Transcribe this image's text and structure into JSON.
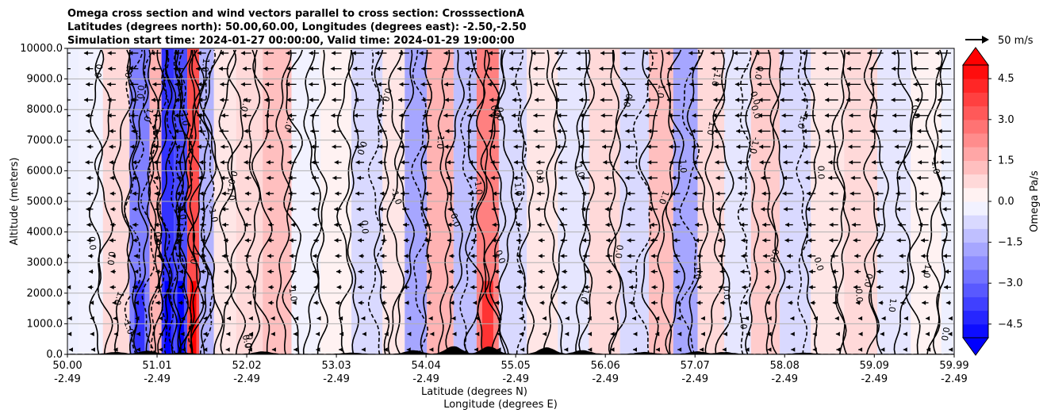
{
  "title": {
    "line1": "Omega cross section and wind vectors parallel to cross section: CrosssectionA",
    "line2": "Latitudes (degrees north): 50.00,60.00, Longitudes (degrees east): -2.50,-2.50",
    "line3": "Simulation start time: 2024-01-27 00:00:00, Valid time: 2024-01-29 19:00:00"
  },
  "chart_data": {
    "type": "heatmap",
    "description_type": "omega cross section with contours and wind vectors",
    "ylabel": "Altitude (meters)",
    "xlabel_lat": "Latitude (degrees N)",
    "xlabel_lon": "Longitude (degrees E)",
    "ylim": [
      0,
      10000
    ],
    "xlim": [
      50.0,
      59.99
    ],
    "y_ticks": [
      "0.0",
      "1000.0",
      "2000.0",
      "3000.0",
      "4000.0",
      "5000.0",
      "6000.0",
      "7000.0",
      "8000.0",
      "9000.0",
      "10000.0"
    ],
    "y_tick_values": [
      0,
      1000,
      2000,
      3000,
      4000,
      5000,
      6000,
      7000,
      8000,
      9000,
      10000
    ],
    "x_ticks_lat": [
      "50.00",
      "51.01",
      "52.02",
      "53.03",
      "54.04",
      "55.05",
      "56.06",
      "57.07",
      "58.08",
      "59.09",
      "59.99"
    ],
    "x_ticks_lon": [
      "-2.49",
      "-2.49",
      "-2.49",
      "-2.49",
      "-2.49",
      "-2.49",
      "-2.49",
      "-2.49",
      "-2.49",
      "-2.49",
      "-2.49"
    ],
    "grid": true,
    "colorbar": {
      "label": "Omega Pa/s",
      "range": [
        -5.0,
        5.0
      ],
      "ticks": [
        "4.5",
        "3.0",
        "1.5",
        "0.0",
        "−1.5",
        "−3.0",
        "−4.5"
      ],
      "tick_values": [
        4.5,
        3.0,
        1.5,
        0.0,
        -1.5,
        -3.0,
        -4.5
      ],
      "colormap": "bwr",
      "extend": "both"
    },
    "contour_levels": [
      -1.0,
      0.0,
      1.0
    ],
    "contour_labels": [
      "0.0",
      "1.0",
      "-1.0",
      "0.0",
      "1.0",
      "0.0",
      "1.0",
      "0.0",
      "-1.0",
      "0.0",
      "1.0",
      "0.0",
      "0.0",
      "-1.0",
      "1.0",
      "0.0"
    ],
    "omega_bands": [
      {
        "lat": 50.25,
        "omega": -0.3
      },
      {
        "lat": 50.55,
        "omega": 0.8
      },
      {
        "lat": 50.85,
        "omega": -2.5
      },
      {
        "lat": 51.0,
        "omega": 1.5
      },
      {
        "lat": 51.12,
        "omega": -4.0
      },
      {
        "lat": 51.28,
        "omega": -3.5
      },
      {
        "lat": 51.42,
        "omega": 3.5
      },
      {
        "lat": 51.55,
        "omega": -1.5
      },
      {
        "lat": 51.75,
        "omega": 0.5
      },
      {
        "lat": 52.05,
        "omega": 0.8
      },
      {
        "lat": 52.35,
        "omega": 1.2
      },
      {
        "lat": 52.7,
        "omega": -0.3
      },
      {
        "lat": 53.0,
        "omega": 0.3
      },
      {
        "lat": 53.4,
        "omega": -0.8
      },
      {
        "lat": 53.7,
        "omega": 0.6
      },
      {
        "lat": 53.9,
        "omega": -1.8
      },
      {
        "lat": 54.2,
        "omega": 1.5
      },
      {
        "lat": 54.5,
        "omega": -1.2
      },
      {
        "lat": 54.72,
        "omega": 2.5
      },
      {
        "lat": 55.0,
        "omega": -0.8
      },
      {
        "lat": 55.35,
        "omega": 0.5
      },
      {
        "lat": 55.7,
        "omega": -0.5
      },
      {
        "lat": 56.05,
        "omega": 0.7
      },
      {
        "lat": 56.4,
        "omega": -0.8
      },
      {
        "lat": 56.7,
        "omega": 1.2
      },
      {
        "lat": 56.95,
        "omega": -1.8
      },
      {
        "lat": 57.25,
        "omega": 0.8
      },
      {
        "lat": 57.55,
        "omega": -0.6
      },
      {
        "lat": 57.85,
        "omega": 1.0
      },
      {
        "lat": 58.2,
        "omega": -0.8
      },
      {
        "lat": 58.55,
        "omega": 0.4
      },
      {
        "lat": 58.95,
        "omega": 0.7
      },
      {
        "lat": 59.3,
        "omega": -0.4
      },
      {
        "lat": 59.7,
        "omega": 0.3
      }
    ],
    "wind_reference": {
      "label": "50 m/s",
      "speed": 50
    },
    "terrain_peaks": [
      {
        "lat": 50.55,
        "height": 60
      },
      {
        "lat": 50.9,
        "height": 100
      },
      {
        "lat": 51.3,
        "height": 40
      },
      {
        "lat": 52.2,
        "height": 80
      },
      {
        "lat": 53.2,
        "height": 40
      },
      {
        "lat": 53.9,
        "height": 120
      },
      {
        "lat": 54.35,
        "height": 250
      },
      {
        "lat": 54.75,
        "height": 240
      },
      {
        "lat": 55.4,
        "height": 210
      },
      {
        "lat": 55.8,
        "height": 120
      },
      {
        "lat": 56.5,
        "height": 60
      },
      {
        "lat": 57.1,
        "height": 80
      },
      {
        "lat": 57.4,
        "height": 60
      },
      {
        "lat": 58.3,
        "height": 40
      }
    ],
    "colors": {
      "positive": "#ff0000",
      "negative": "#0000ff",
      "neutral": "#ffffff",
      "contour": "#000000"
    }
  }
}
